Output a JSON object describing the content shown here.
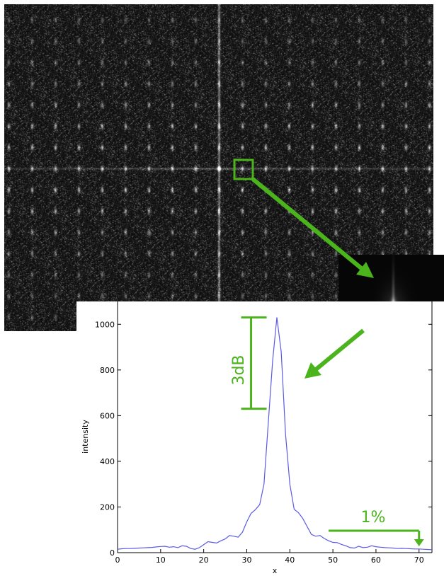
{
  "colors": {
    "accent": "#4bb41d",
    "series": "#5a5ae6",
    "background_dark": "#050505"
  },
  "images": {
    "fft_spectrum": "fft-magnitude-image",
    "zoom_inset": "zoomed-peak-image"
  },
  "annotations": {
    "db_label": "3dB",
    "percent_label": "1%"
  },
  "chart_data": {
    "type": "line",
    "title": "",
    "xlabel": "x",
    "ylabel": "intensity",
    "xlim": [
      0,
      73
    ],
    "ylim": [
      0,
      1100
    ],
    "x_ticks": [
      0,
      10,
      20,
      30,
      40,
      50,
      60,
      70
    ],
    "y_ticks": [
      0,
      200,
      400,
      600,
      800,
      1000
    ],
    "grid": false,
    "series": [
      {
        "x": [
          0,
          1,
          2,
          3,
          4,
          5,
          6,
          7,
          8,
          9,
          10,
          11,
          12,
          13,
          14,
          15,
          16,
          17,
          18,
          19,
          20,
          21,
          22,
          23,
          24,
          25,
          26,
          27,
          28,
          29,
          30,
          31,
          32,
          33,
          34,
          35,
          36,
          37,
          38,
          39,
          40,
          41,
          42,
          43,
          44,
          45,
          46,
          47,
          48,
          49,
          50,
          51,
          52,
          53,
          54,
          55,
          56,
          57,
          58,
          59,
          60,
          61,
          62,
          63,
          64,
          65,
          66,
          67,
          68,
          69,
          70,
          71,
          72,
          73
        ],
        "values": [
          15,
          17,
          18,
          18,
          19,
          20,
          21,
          22,
          23,
          25,
          27,
          28,
          24,
          26,
          22,
          30,
          28,
          18,
          15,
          22,
          35,
          48,
          45,
          42,
          52,
          60,
          75,
          72,
          68,
          90,
          135,
          172,
          188,
          210,
          300,
          570,
          840,
          1030,
          880,
          520,
          300,
          190,
          175,
          150,
          115,
          80,
          72,
          75,
          62,
          52,
          45,
          44,
          36,
          30,
          22,
          20,
          28,
          22,
          24,
          30,
          26,
          24,
          22,
          21,
          20,
          18,
          19,
          18,
          17,
          16,
          16,
          15,
          14,
          13
        ]
      }
    ],
    "annotations": [
      {
        "text": "3dB",
        "x": 31,
        "y_range": [
          630,
          1030
        ]
      },
      {
        "text": "1%",
        "x_range": [
          49,
          70
        ],
        "y": 100
      }
    ]
  }
}
